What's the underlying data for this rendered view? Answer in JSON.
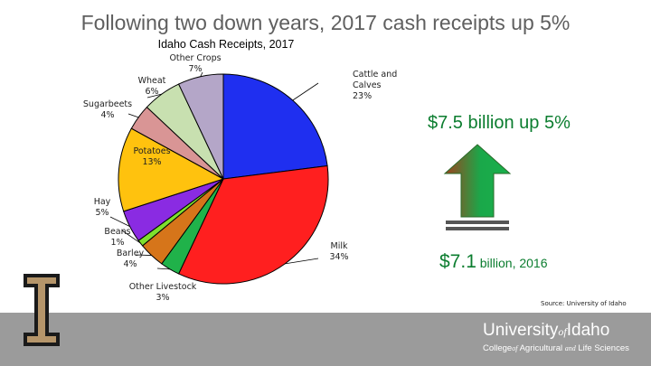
{
  "slide": {
    "title": "Following two down years, 2017 cash receipts up 5%",
    "headline": "$7.5 billion up 5%",
    "prev_value_big": "$7.1",
    "prev_value_small": " billion, 2016",
    "source": "Source: University of Idaho"
  },
  "brand": {
    "university": "University",
    "of": "of",
    "idaho": "Idaho",
    "college_a": "College",
    "college_of": "of",
    "college_b": " Agricultural ",
    "college_and": "and",
    "college_c": " Life Sciences",
    "logo_letter": "I"
  },
  "colors": {
    "title": "#5f5f5f",
    "headline": "#0b7d2f",
    "footer_bg": "#9b9b9b",
    "logo_gold": "#b5956a",
    "logo_black": "#1a1a1a"
  },
  "chart_data": {
    "type": "pie",
    "title": "Idaho Cash Receipts, 2017",
    "slices": [
      {
        "label": "Cattle and Calves",
        "value": 23,
        "pct_label": "23%",
        "color": "#1f2ff0"
      },
      {
        "label": "Milk",
        "value": 34,
        "pct_label": "34%",
        "color": "#ff1f1f"
      },
      {
        "label": "Other Livestock",
        "value": 3,
        "pct_label": "3%",
        "color": "#20b24a"
      },
      {
        "label": "Barley",
        "value": 4,
        "pct_label": "4%",
        "color": "#d6751a"
      },
      {
        "label": "Beans",
        "value": 1,
        "pct_label": "1%",
        "color": "#7ee02e"
      },
      {
        "label": "Hay",
        "value": 5,
        "pct_label": "5%",
        "color": "#8a2be2"
      },
      {
        "label": "Potatoes",
        "value": 13,
        "pct_label": "13%",
        "color": "#ffc20e"
      },
      {
        "label": "Sugarbeets",
        "value": 4,
        "pct_label": "4%",
        "color": "#d99595"
      },
      {
        "label": "Wheat",
        "value": 6,
        "pct_label": "6%",
        "color": "#c8e0b0"
      },
      {
        "label": "Other Crops",
        "value": 7,
        "pct_label": "7%",
        "color": "#b4a6c8"
      }
    ]
  }
}
